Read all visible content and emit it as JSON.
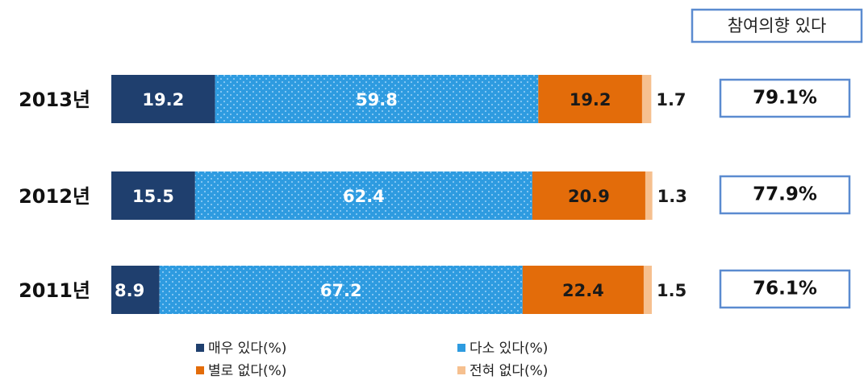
{
  "chart_data": {
    "type": "stacked-bar-horizontal",
    "categories": [
      "2013년",
      "2012년",
      "2011년"
    ],
    "series": [
      {
        "name": "매우 있다(%)",
        "color": "#1f3f6e",
        "values": [
          19.2,
          15.5,
          8.9
        ]
      },
      {
        "name": "다소 있다(%)",
        "color": "#2e9be0",
        "values": [
          59.8,
          62.4,
          67.2
        ]
      },
      {
        "name": "별로 없다(%)",
        "color": "#e36c0a",
        "values": [
          19.2,
          20.9,
          22.4
        ]
      },
      {
        "name": "전혀 없다(%)",
        "color": "#f6c08f",
        "values": [
          1.7,
          1.3,
          1.5
        ]
      }
    ],
    "side_title": "참여의향 있다",
    "side_labels": [
      "79.1%",
      "77.9%",
      "76.1%"
    ]
  }
}
